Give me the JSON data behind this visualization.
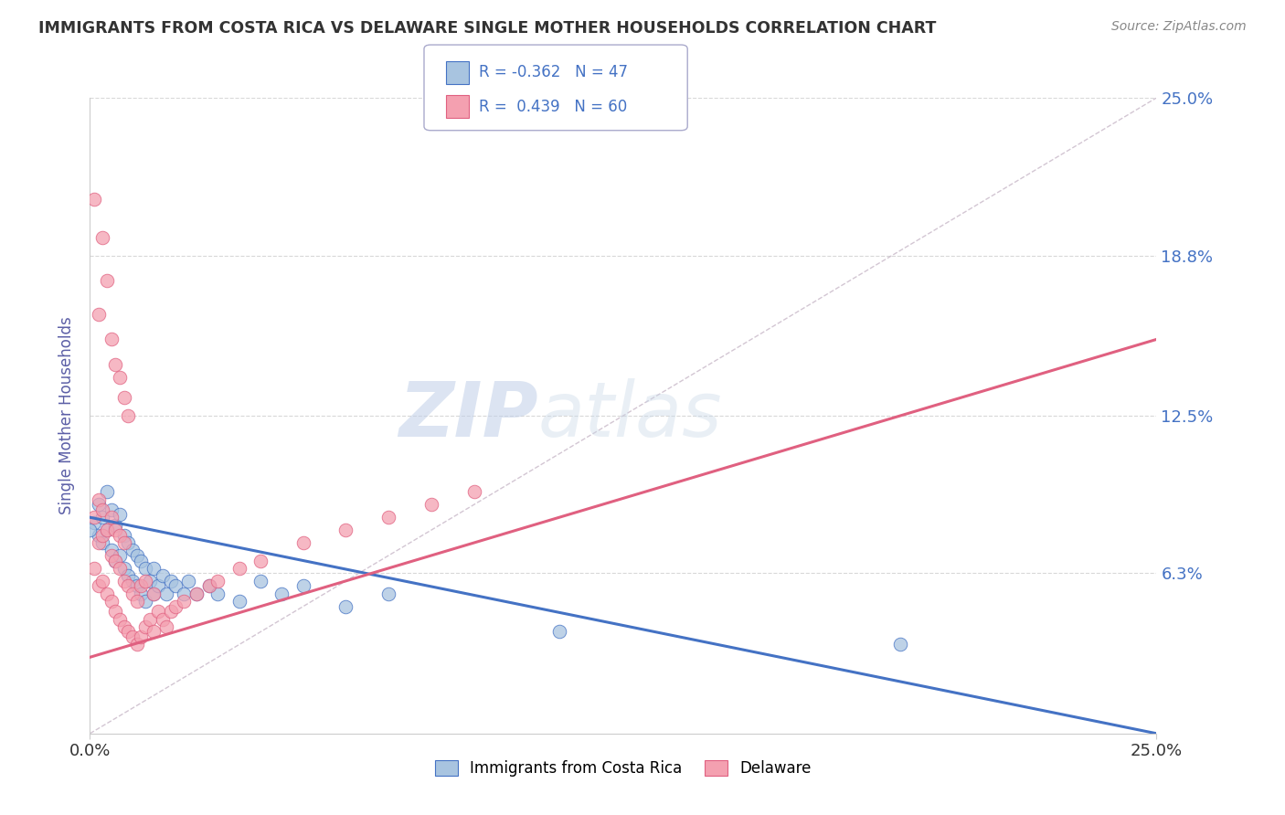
{
  "title": "IMMIGRANTS FROM COSTA RICA VS DELAWARE SINGLE MOTHER HOUSEHOLDS CORRELATION CHART",
  "source": "Source: ZipAtlas.com",
  "ylabel": "Single Mother Households",
  "xmin": 0.0,
  "xmax": 0.25,
  "ymin": 0.0,
  "ymax": 0.25,
  "yticks": [
    0.063,
    0.125,
    0.188,
    0.25
  ],
  "ytick_labels": [
    "6.3%",
    "12.5%",
    "18.8%",
    "25.0%"
  ],
  "xtick_labels": [
    "0.0%",
    "25.0%"
  ],
  "legend1_label": "Immigrants from Costa Rica",
  "legend2_label": "Delaware",
  "r1": -0.362,
  "n1": 47,
  "r2": 0.439,
  "n2": 60,
  "color1": "#a8c4e0",
  "color2": "#f4a0b0",
  "line1_color": "#4472c4",
  "line2_color": "#e06080",
  "title_color": "#333333",
  "source_color": "#888888",
  "ylabel_color": "#5b5ea6",
  "watermark_color": "#c8d8f0",
  "background_color": "#ffffff",
  "grid_color": "#d8d8d8",
  "blue_scatter_x": [
    0.001,
    0.002,
    0.002,
    0.003,
    0.003,
    0.004,
    0.004,
    0.005,
    0.005,
    0.006,
    0.006,
    0.007,
    0.007,
    0.008,
    0.008,
    0.009,
    0.009,
    0.01,
    0.01,
    0.011,
    0.011,
    0.012,
    0.012,
    0.013,
    0.013,
    0.014,
    0.015,
    0.015,
    0.016,
    0.017,
    0.018,
    0.019,
    0.02,
    0.022,
    0.023,
    0.025,
    0.028,
    0.03,
    0.035,
    0.04,
    0.045,
    0.05,
    0.06,
    0.07,
    0.11,
    0.19,
    0.0
  ],
  "blue_scatter_y": [
    0.083,
    0.078,
    0.09,
    0.075,
    0.085,
    0.08,
    0.095,
    0.072,
    0.088,
    0.068,
    0.082,
    0.07,
    0.086,
    0.065,
    0.078,
    0.062,
    0.075,
    0.06,
    0.072,
    0.058,
    0.07,
    0.055,
    0.068,
    0.052,
    0.065,
    0.06,
    0.055,
    0.065,
    0.058,
    0.062,
    0.055,
    0.06,
    0.058,
    0.055,
    0.06,
    0.055,
    0.058,
    0.055,
    0.052,
    0.06,
    0.055,
    0.058,
    0.05,
    0.055,
    0.04,
    0.035,
    0.08
  ],
  "pink_scatter_x": [
    0.001,
    0.001,
    0.002,
    0.002,
    0.002,
    0.003,
    0.003,
    0.003,
    0.004,
    0.004,
    0.005,
    0.005,
    0.005,
    0.006,
    0.006,
    0.006,
    0.007,
    0.007,
    0.007,
    0.008,
    0.008,
    0.008,
    0.009,
    0.009,
    0.01,
    0.01,
    0.011,
    0.011,
    0.012,
    0.012,
    0.013,
    0.013,
    0.014,
    0.015,
    0.015,
    0.016,
    0.017,
    0.018,
    0.019,
    0.02,
    0.022,
    0.025,
    0.028,
    0.03,
    0.035,
    0.04,
    0.05,
    0.06,
    0.07,
    0.08,
    0.09,
    0.001,
    0.002,
    0.003,
    0.004,
    0.005,
    0.006,
    0.007,
    0.008,
    0.009
  ],
  "pink_scatter_y": [
    0.065,
    0.085,
    0.058,
    0.075,
    0.092,
    0.06,
    0.078,
    0.088,
    0.055,
    0.08,
    0.052,
    0.07,
    0.085,
    0.048,
    0.068,
    0.08,
    0.045,
    0.065,
    0.078,
    0.042,
    0.06,
    0.075,
    0.04,
    0.058,
    0.038,
    0.055,
    0.035,
    0.052,
    0.038,
    0.058,
    0.042,
    0.06,
    0.045,
    0.04,
    0.055,
    0.048,
    0.045,
    0.042,
    0.048,
    0.05,
    0.052,
    0.055,
    0.058,
    0.06,
    0.065,
    0.068,
    0.075,
    0.08,
    0.085,
    0.09,
    0.095,
    0.21,
    0.165,
    0.195,
    0.178,
    0.155,
    0.145,
    0.14,
    0.132,
    0.125
  ],
  "blue_line_x0": 0.0,
  "blue_line_y0": 0.085,
  "blue_line_x1": 0.25,
  "blue_line_y1": 0.0,
  "pink_line_x0": 0.0,
  "pink_line_y0": 0.03,
  "pink_line_x1": 0.25,
  "pink_line_y1": 0.155
}
